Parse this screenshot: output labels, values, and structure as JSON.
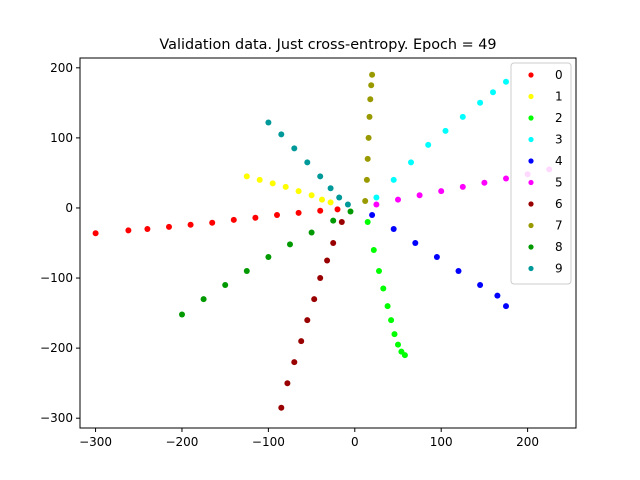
{
  "chart_data": {
    "type": "scatter",
    "title": "Validation data. Just cross-entropy. Epoch = 49",
    "xlabel": "",
    "ylabel": "",
    "xlim": [
      -318,
      256
    ],
    "ylim": [
      -314,
      214
    ],
    "xticks": [
      -300,
      -200,
      -100,
      0,
      100,
      200
    ],
    "yticks": [
      200,
      100,
      0,
      -100,
      -200,
      -300
    ],
    "xtick_labels": [
      "−300",
      "−200",
      "−100",
      "0",
      "100",
      "200"
    ],
    "ytick_labels": [
      "200",
      "100",
      "0",
      "−100",
      "−200",
      "−300"
    ],
    "grid": false,
    "legend_position": "top-right",
    "series": [
      {
        "name": "0",
        "color": "#ff0000",
        "x": [
          -262,
          -240,
          -215,
          -190,
          -165,
          -140,
          -115,
          -90,
          -65,
          -40,
          -20,
          -300
        ],
        "y": [
          -32,
          -30,
          -27,
          -24,
          -21,
          -17,
          -14,
          -10,
          -7,
          -4,
          -2,
          -36
        ]
      },
      {
        "name": "1",
        "color": "#ffff00",
        "x": [
          -125,
          -110,
          -95,
          -80,
          -65,
          -50,
          -38,
          -28
        ],
        "y": [
          45,
          40,
          35,
          30,
          24,
          18,
          12,
          8
        ]
      },
      {
        "name": "2",
        "color": "#00ff00",
        "x": [
          15,
          22,
          28,
          33,
          38,
          42,
          46,
          50,
          54,
          58
        ],
        "y": [
          -20,
          -60,
          -90,
          -115,
          -140,
          -160,
          -180,
          -195,
          -205,
          -210
        ]
      },
      {
        "name": "3",
        "color": "#00ffff",
        "x": [
          25,
          45,
          65,
          85,
          105,
          125,
          145,
          160,
          175
        ],
        "y": [
          15,
          40,
          65,
          90,
          110,
          130,
          150,
          165,
          180
        ]
      },
      {
        "name": "4",
        "color": "#0000ff",
        "x": [
          20,
          45,
          70,
          95,
          120,
          145,
          165,
          175
        ],
        "y": [
          -10,
          -30,
          -50,
          -70,
          -90,
          -110,
          -125,
          -140
        ]
      },
      {
        "name": "5",
        "color": "#ff00ff",
        "x": [
          25,
          50,
          75,
          100,
          125,
          150,
          175,
          200,
          225
        ],
        "y": [
          5,
          12,
          18,
          24,
          30,
          36,
          42,
          48,
          55
        ]
      },
      {
        "name": "6",
        "color": "#990000",
        "x": [
          -85,
          -78,
          -70,
          -62,
          -55,
          -47,
          -40,
          -32,
          -25,
          -15
        ],
        "y": [
          -285,
          -250,
          -220,
          -190,
          -160,
          -130,
          -100,
          -75,
          -50,
          -20
        ]
      },
      {
        "name": "7",
        "color": "#999900",
        "x": [
          12,
          14,
          15,
          16,
          17,
          18,
          19,
          20
        ],
        "y": [
          10,
          40,
          70,
          100,
          130,
          155,
          175,
          190
        ]
      },
      {
        "name": "8",
        "color": "#009900",
        "x": [
          -200,
          -175,
          -150,
          -125,
          -100,
          -75,
          -50,
          -25,
          -5
        ],
        "y": [
          -152,
          -130,
          -110,
          -90,
          -70,
          -52,
          -35,
          -18,
          -5
        ]
      },
      {
        "name": "9",
        "color": "#009999",
        "x": [
          -100,
          -85,
          -70,
          -55,
          -40,
          -28,
          -18,
          -8
        ],
        "y": [
          122,
          105,
          85,
          65,
          45,
          28,
          15,
          5
        ]
      }
    ]
  }
}
